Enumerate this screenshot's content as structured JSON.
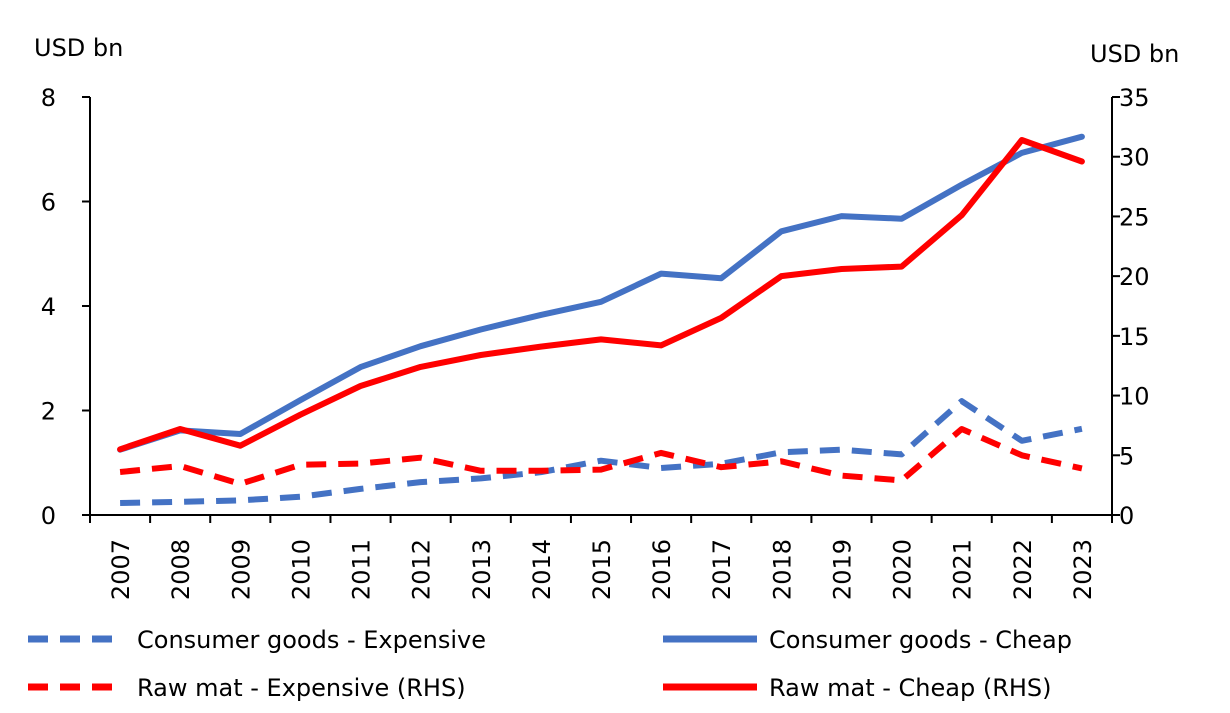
{
  "chart_data": {
    "type": "line",
    "title": "",
    "y_left_unit": "USD bn",
    "y_right_unit": "USD bn",
    "ylim_left": [
      0,
      8
    ],
    "ylim_right": [
      0,
      35
    ],
    "yticks_left": [
      "0",
      "2",
      "4",
      "6",
      "8"
    ],
    "yticks_right": [
      "0",
      "5",
      "10",
      "15",
      "20",
      "25",
      "30",
      "35"
    ],
    "categories": [
      "2007",
      "2008",
      "2009",
      "2010",
      "2011",
      "2012",
      "2013",
      "2014",
      "2015",
      "2016",
      "2017",
      "2018",
      "2019",
      "2020",
      "2021",
      "2022",
      "2023"
    ],
    "series": [
      {
        "name": "Consumer goods - Expensive",
        "axis": "left",
        "style": "dashed",
        "color": "#4472C4",
        "values": [
          0.23,
          0.25,
          0.28,
          0.35,
          0.5,
          0.63,
          0.7,
          0.82,
          1.04,
          0.9,
          0.98,
          1.2,
          1.25,
          1.16,
          2.18,
          1.42,
          1.65
        ]
      },
      {
        "name": "Consumer goods - Cheap",
        "axis": "left",
        "style": "solid",
        "color": "#4472C4",
        "values": [
          1.25,
          1.62,
          1.55,
          2.2,
          2.83,
          3.23,
          3.55,
          3.83,
          4.08,
          4.62,
          4.53,
          5.43,
          5.72,
          5.67,
          6.32,
          6.93,
          7.24
        ]
      },
      {
        "name": "Raw mat - Expensive (RHS)",
        "axis": "right",
        "style": "dashed",
        "color": "#FF0000",
        "values": [
          3.6,
          4.1,
          2.6,
          4.2,
          4.3,
          4.8,
          3.7,
          3.7,
          3.8,
          5.2,
          4.0,
          4.5,
          3.3,
          2.9,
          7.2,
          5.0,
          3.9
        ]
      },
      {
        "name": "Raw mat - Cheap (RHS)",
        "axis": "right",
        "style": "solid",
        "color": "#FF0000",
        "values": [
          5.5,
          7.2,
          5.8,
          8.4,
          10.8,
          12.4,
          13.4,
          14.1,
          14.7,
          14.2,
          16.5,
          20.0,
          20.6,
          20.8,
          25.1,
          31.4,
          29.6
        ]
      }
    ],
    "legend_position": "bottom"
  }
}
